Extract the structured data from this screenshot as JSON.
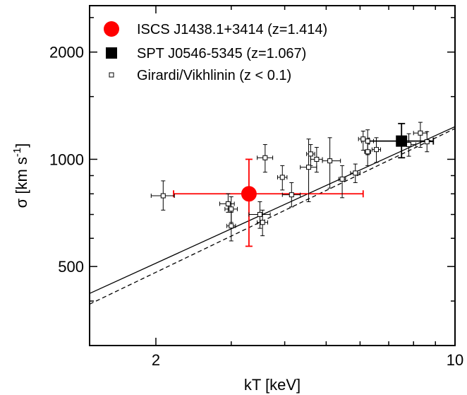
{
  "chart_data": {
    "type": "scatter",
    "xlabel": "kT [keV]",
    "ylabel": "σ [km s⁻¹]",
    "x_scale": "log",
    "y_scale": "log",
    "xlim": [
      1.4,
      10
    ],
    "ylim": [
      300,
      2700
    ],
    "x_ticks": [
      {
        "value": 2,
        "label": "2"
      },
      {
        "value": 10,
        "label": "10"
      }
    ],
    "y_ticks": [
      {
        "value": 500,
        "label": "500"
      },
      {
        "value": 1000,
        "label": "1000"
      },
      {
        "value": 2000,
        "label": "2000"
      }
    ],
    "legend_position": "top-left",
    "series": [
      {
        "name": "ISCS J1438.1+3414 (z=1.414)",
        "marker": "filled-circle",
        "color": "#ff0000",
        "points": [
          {
            "x": 3.3,
            "y": 800,
            "xerr": [
              2.2,
              6.1
            ],
            "yerr": [
              570,
              1000
            ]
          }
        ]
      },
      {
        "name": "SPT J0546-5345 (z=1.067)",
        "marker": "filled-square",
        "color": "#000000",
        "points": [
          {
            "x": 7.5,
            "y": 1125,
            "xerr": [
              6.3,
              8.9
            ],
            "yerr": [
              1010,
              1260
            ]
          }
        ]
      },
      {
        "name": "Girardi/Vikhlinin (z < 0.1)",
        "marker": "open-square",
        "color": "#000000",
        "points": [
          {
            "x": 2.08,
            "y": 790,
            "xerr": [
              1.95,
              2.21
            ],
            "yerr": [
              720,
              870
            ]
          },
          {
            "x": 2.95,
            "y": 750,
            "xerr": [
              2.82,
              3.05
            ],
            "yerr": [
              710,
              800
            ]
          },
          {
            "x": 3.0,
            "y": 725,
            "xerr": [
              2.9,
              3.1
            ],
            "yerr": [
              665,
              785
            ]
          },
          {
            "x": 3.0,
            "y": 650,
            "xerr": [
              2.93,
              3.07
            ],
            "yerr": [
              590,
              710
            ]
          },
          {
            "x": 3.6,
            "y": 1010,
            "xerr": [
              3.45,
              3.75
            ],
            "yerr": [
              920,
              1100
            ]
          },
          {
            "x": 3.5,
            "y": 700,
            "xerr": [
              3.3,
              3.7
            ],
            "yerr": [
              640,
              760
            ]
          },
          {
            "x": 3.55,
            "y": 665,
            "xerr": [
              3.45,
              3.65
            ],
            "yerr": [
              610,
              720
            ]
          },
          {
            "x": 3.95,
            "y": 890,
            "xerr": [
              3.85,
              4.05
            ],
            "yerr": [
              820,
              960
            ]
          },
          {
            "x": 4.15,
            "y": 795,
            "xerr": [
              3.95,
              4.35
            ],
            "yerr": [
              735,
              860
            ]
          },
          {
            "x": 4.55,
            "y": 950,
            "xerr": [
              4.35,
              4.75
            ],
            "yerr": [
              760,
              1140
            ]
          },
          {
            "x": 4.6,
            "y": 1035,
            "xerr": [
              4.5,
              4.7
            ],
            "yerr": [
              960,
              1100
            ]
          },
          {
            "x": 4.75,
            "y": 1000,
            "xerr": [
              4.6,
              4.9
            ],
            "yerr": [
              920,
              1080
            ]
          },
          {
            "x": 5.1,
            "y": 990,
            "xerr": [
              4.9,
              5.4
            ],
            "yerr": [
              830,
              1150
            ]
          },
          {
            "x": 5.45,
            "y": 880,
            "xerr": [
              5.35,
              5.55
            ],
            "yerr": [
              780,
              960
            ]
          },
          {
            "x": 5.85,
            "y": 915,
            "xerr": [
              5.7,
              6.0
            ],
            "yerr": [
              860,
              970
            ]
          },
          {
            "x": 6.1,
            "y": 1140,
            "xerr": [
              5.95,
              6.25
            ],
            "yerr": [
              1060,
              1200
            ]
          },
          {
            "x": 6.25,
            "y": 1125,
            "xerr": [
              6.05,
              6.45
            ],
            "yerr": [
              1030,
              1210
            ]
          },
          {
            "x": 6.25,
            "y": 1050,
            "xerr": [
              6.15,
              6.35
            ],
            "yerr": [
              960,
              1140
            ]
          },
          {
            "x": 6.55,
            "y": 1065,
            "xerr": [
              6.4,
              6.7
            ],
            "yerr": [
              980,
              1150
            ]
          },
          {
            "x": 7.8,
            "y": 1100,
            "xerr": [
              7.5,
              8.1
            ],
            "yerr": [
              1020,
              1180
            ]
          },
          {
            "x": 8.3,
            "y": 1185,
            "xerr": [
              8.0,
              8.6
            ],
            "yerr": [
              1080,
              1270
            ]
          },
          {
            "x": 8.6,
            "y": 1120,
            "xerr": [
              8.3,
              8.9
            ],
            "yerr": [
              1050,
              1195
            ]
          }
        ]
      }
    ],
    "fit_lines": [
      {
        "style": "solid",
        "x": [
          1.4,
          10
        ],
        "y": [
          420,
          1235
        ]
      },
      {
        "style": "dashed",
        "x": [
          1.4,
          10
        ],
        "y": [
          392,
          1220
        ]
      }
    ]
  }
}
